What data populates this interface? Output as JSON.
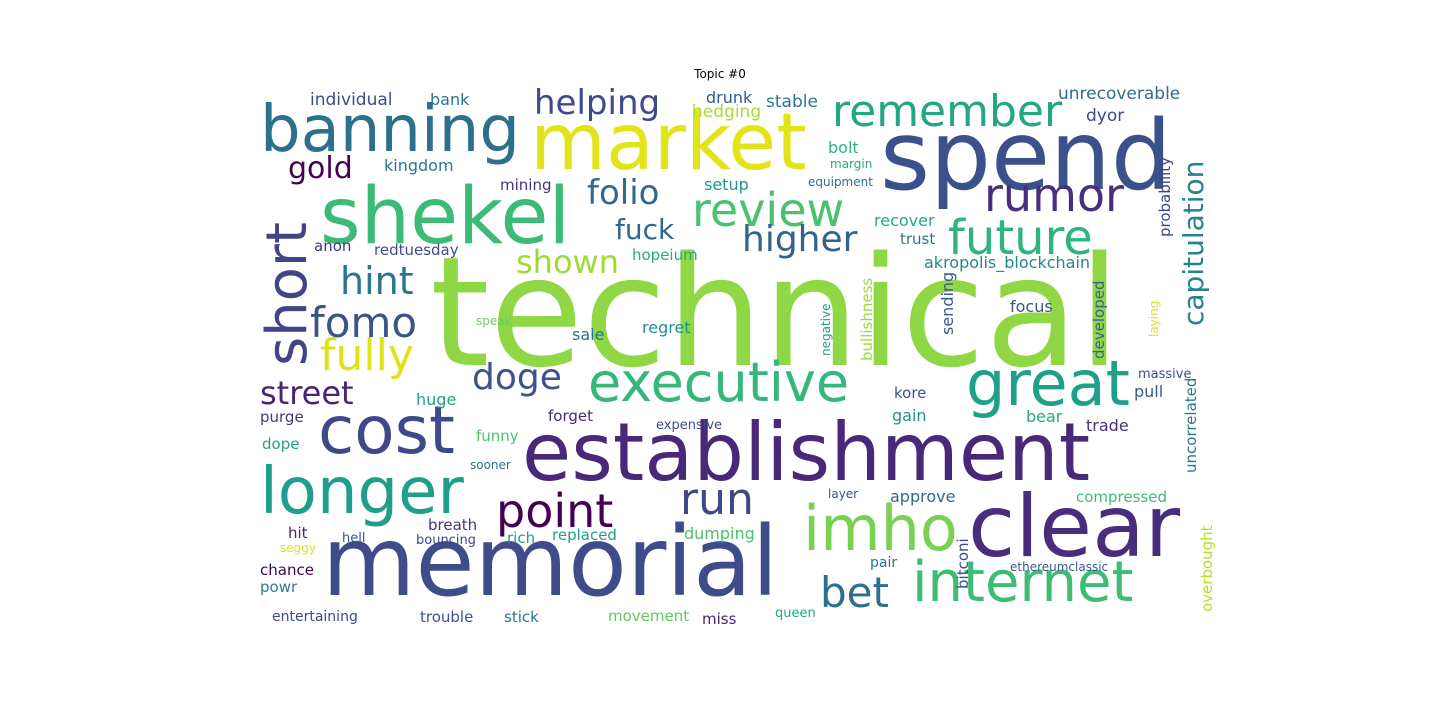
{
  "figure": {
    "title": "Topic #0"
  },
  "words": [
    {
      "text": "technical",
      "color": "#8fd744"
    },
    {
      "text": "establishment",
      "color": "#482878"
    },
    {
      "text": "memorial",
      "color": "#3e4c8a"
    },
    {
      "text": "spend",
      "color": "#3b518b"
    },
    {
      "text": "market",
      "color": "#e2e418"
    },
    {
      "text": "shekel",
      "color": "#3bbb75"
    },
    {
      "text": "clear",
      "color": "#472d7b"
    },
    {
      "text": "banning",
      "color": "#2d708e"
    },
    {
      "text": "cost",
      "color": "#3e4989"
    },
    {
      "text": "longer",
      "color": "#1f9e89"
    },
    {
      "text": "executive",
      "color": "#35b779"
    },
    {
      "text": "internet",
      "color": "#3dbc74"
    },
    {
      "text": "great",
      "color": "#1fa088"
    },
    {
      "text": "imho",
      "color": "#7ad151"
    },
    {
      "text": "short",
      "color": "#414487"
    },
    {
      "text": "remember",
      "color": "#22a785"
    },
    {
      "text": "review",
      "color": "#4ac16d"
    },
    {
      "text": "future",
      "color": "#2fb47c"
    },
    {
      "text": "rumor",
      "color": "#472f7d"
    },
    {
      "text": "point",
      "color": "#440154"
    },
    {
      "text": "run",
      "color": "#3f4788"
    },
    {
      "text": "fomo",
      "color": "#3a548c"
    },
    {
      "text": "fully",
      "color": "#dde318"
    },
    {
      "text": "higher",
      "color": "#33638d"
    },
    {
      "text": "bet",
      "color": "#2e6e8e"
    },
    {
      "text": "helping",
      "color": "#3e4a89"
    },
    {
      "text": "hint",
      "color": "#2b758e"
    },
    {
      "text": "folio",
      "color": "#31688e"
    },
    {
      "text": "doge",
      "color": "#3b528b"
    },
    {
      "text": "street",
      "color": "#482475"
    },
    {
      "text": "capitulation",
      "color": "#26828e"
    },
    {
      "text": "shown",
      "color": "#a0da39"
    },
    {
      "text": "gold",
      "color": "#440154"
    },
    {
      "text": "fuck",
      "color": "#31668e"
    },
    {
      "text": "unrecoverable",
      "color": "#2e6d8e"
    },
    {
      "text": "individual",
      "color": "#3e4a89"
    },
    {
      "text": "bank",
      "color": "#2d718e"
    },
    {
      "text": "drunk",
      "color": "#38598c"
    },
    {
      "text": "stable",
      "color": "#2a778e"
    },
    {
      "text": "hedging",
      "color": "#a8db34"
    },
    {
      "text": "dyor",
      "color": "#3f4889"
    },
    {
      "text": "kingdom",
      "color": "#2a778e"
    },
    {
      "text": "bolt",
      "color": "#2db27d"
    },
    {
      "text": "margin",
      "color": "#25ac82"
    },
    {
      "text": "mining",
      "color": "#46327e"
    },
    {
      "text": "setup",
      "color": "#1f9a8a"
    },
    {
      "text": "equipment",
      "color": "#2d708e"
    },
    {
      "text": "probability",
      "color": "#414487"
    },
    {
      "text": "recover",
      "color": "#22a884"
    },
    {
      "text": "trust",
      "color": "#2a788e"
    },
    {
      "text": "anon",
      "color": "#46327e"
    },
    {
      "text": "redtuesday",
      "color": "#3e4c8a"
    },
    {
      "text": "hopeium",
      "color": "#25ab82"
    },
    {
      "text": "akropolis_blockchain",
      "color": "#24868e"
    },
    {
      "text": "speak",
      "color": "#6ccd5a"
    },
    {
      "text": "negative",
      "color": "#1e9b8a"
    },
    {
      "text": "bullishness",
      "color": "#9fda3a"
    },
    {
      "text": "sending",
      "color": "#38588c"
    },
    {
      "text": "focus",
      "color": "#3b528b"
    },
    {
      "text": "developed",
      "color": "#33638d"
    },
    {
      "text": "laying",
      "color": "#dae319"
    },
    {
      "text": "sale",
      "color": "#2c728e"
    },
    {
      "text": "regret",
      "color": "#20928c"
    },
    {
      "text": "massive",
      "color": "#3e4c8a"
    },
    {
      "text": "pull",
      "color": "#38598c"
    },
    {
      "text": "uncorrelated",
      "color": "#2a768e"
    },
    {
      "text": "purge",
      "color": "#46337f"
    },
    {
      "text": "huge",
      "color": "#1fa187"
    },
    {
      "text": "forget",
      "color": "#482979"
    },
    {
      "text": "kore",
      "color": "#3b528b"
    },
    {
      "text": "gain",
      "color": "#20928c"
    },
    {
      "text": "bear",
      "color": "#24aa83"
    },
    {
      "text": "expensive",
      "color": "#3e4a89"
    },
    {
      "text": "trade",
      "color": "#472f7d"
    },
    {
      "text": "dope",
      "color": "#20a486"
    },
    {
      "text": "funny",
      "color": "#4ec36b"
    },
    {
      "text": "sooner",
      "color": "#2c718e"
    },
    {
      "text": "layer",
      "color": "#3b528b"
    },
    {
      "text": "approve",
      "color": "#31688e"
    },
    {
      "text": "compressed",
      "color": "#3bbb75"
    },
    {
      "text": "hit",
      "color": "#482475"
    },
    {
      "text": "breath",
      "color": "#46337f"
    },
    {
      "text": "bitconi",
      "color": "#3f4889"
    },
    {
      "text": "seggy",
      "color": "#dde318"
    },
    {
      "text": "hell",
      "color": "#3b528b"
    },
    {
      "text": "bouncing",
      "color": "#414487"
    },
    {
      "text": "rich",
      "color": "#1f9e89"
    },
    {
      "text": "replaced",
      "color": "#1fa088"
    },
    {
      "text": "dumping",
      "color": "#4ac16d"
    },
    {
      "text": "overbought",
      "color": "#b8de29"
    },
    {
      "text": "chance",
      "color": "#440154"
    },
    {
      "text": "pair",
      "color": "#2d718e"
    },
    {
      "text": "ethereumclassic",
      "color": "#38598c"
    },
    {
      "text": "powr",
      "color": "#2a788e"
    },
    {
      "text": "entertaining",
      "color": "#3e4a89"
    },
    {
      "text": "trouble",
      "color": "#3b528b"
    },
    {
      "text": "stick",
      "color": "#2a778e"
    },
    {
      "text": "movement",
      "color": "#5ec962"
    },
    {
      "text": "miss",
      "color": "#482475"
    },
    {
      "text": "queen",
      "color": "#23a983"
    }
  ]
}
